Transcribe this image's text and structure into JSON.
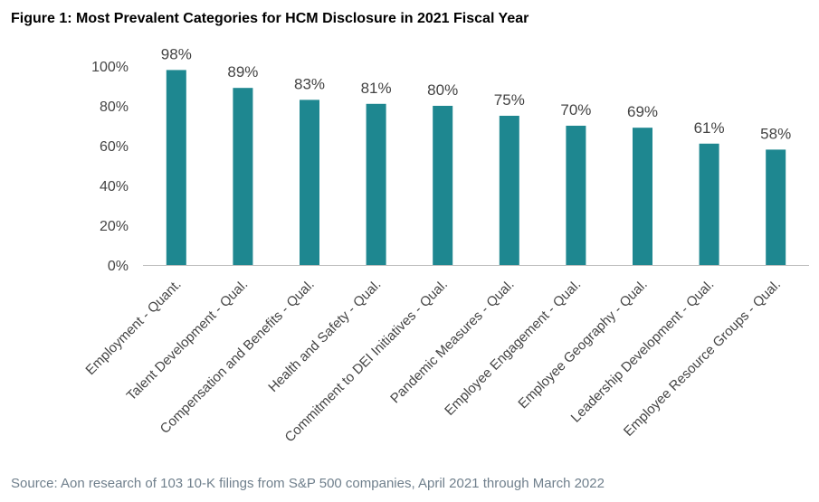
{
  "title": "Figure 1: Most Prevalent Categories for HCM Disclosure in 2021 Fiscal Year",
  "source": "Source: Aon research of 103 10-K filings from S&P 500 companies, April 2021 through March 2022",
  "colors": {
    "bar": "#1e8790",
    "axis": "#bfbfbf"
  },
  "chart_data": {
    "type": "bar",
    "categories": [
      "Employment - Quant.",
      "Talent Development - Qual.",
      "Compensation and Benefits - Qual.",
      "Health and Safety - Qual.",
      "Commitment to DEI Initiatives - Qual.",
      "Pandemic Measures - Qual.",
      "Employee Engagement - Qual.",
      "Employee Geography - Qual.",
      "Leadership Development - Qual.",
      "Employee Resource Groups - Qual."
    ],
    "values": [
      98,
      89,
      83,
      81,
      80,
      75,
      70,
      69,
      61,
      58
    ],
    "data_labels": [
      "98%",
      "89%",
      "83%",
      "81%",
      "80%",
      "75%",
      "70%",
      "69%",
      "61%",
      "58%"
    ],
    "yticks": [
      "0%",
      "20%",
      "40%",
      "60%",
      "80%",
      "100%"
    ],
    "ylim": [
      0,
      100
    ],
    "grid": false,
    "legend": "none"
  }
}
